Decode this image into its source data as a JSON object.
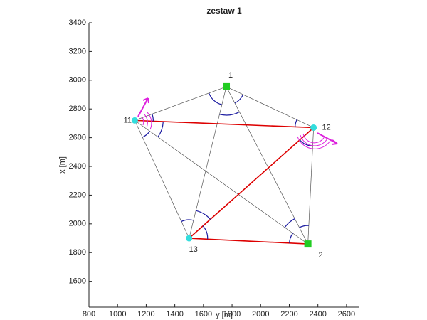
{
  "chart_data": {
    "type": "network",
    "title": "zestaw 1",
    "xlabel": "y [m]",
    "ylabel": "x [m]",
    "xlim": [
      800,
      2690
    ],
    "ylim": [
      1420,
      3400
    ],
    "xticks": [
      800,
      1000,
      1200,
      1400,
      1600,
      1800,
      2000,
      2200,
      2400,
      2600
    ],
    "yticks": [
      1600,
      1800,
      2000,
      2200,
      2400,
      2600,
      2800,
      3000,
      3200,
      3400
    ],
    "points": [
      {
        "label": "1",
        "x": 1760,
        "y": 2955,
        "color": "#22cc22",
        "marker": "square"
      },
      {
        "label": "11",
        "x": 1120,
        "y": 2720,
        "color": "#33dddd",
        "marker": "circle"
      },
      {
        "label": "12",
        "x": 2370,
        "y": 2670,
        "color": "#33dddd",
        "marker": "circle"
      },
      {
        "label": "13",
        "x": 1500,
        "y": 1900,
        "color": "#33dddd",
        "marker": "circle"
      },
      {
        "label": "2",
        "x": 2330,
        "y": 1860,
        "color": "#22cc22",
        "marker": "square"
      }
    ],
    "edges": [
      {
        "from": 0,
        "to": 1,
        "color": "#555555"
      },
      {
        "from": 0,
        "to": 2,
        "color": "#555555"
      },
      {
        "from": 0,
        "to": 3,
        "color": "#555555"
      },
      {
        "from": 0,
        "to": 4,
        "color": "#555555"
      },
      {
        "from": 1,
        "to": 3,
        "color": "#555555"
      },
      {
        "from": 1,
        "to": 4,
        "color": "#555555"
      },
      {
        "from": 2,
        "to": 4,
        "color": "#555555"
      },
      {
        "from": 1,
        "to": 2,
        "color": "#dd0000"
      },
      {
        "from": 2,
        "to": 3,
        "color": "#dd0000"
      },
      {
        "from": 3,
        "to": 4,
        "color": "#dd0000"
      }
    ]
  }
}
